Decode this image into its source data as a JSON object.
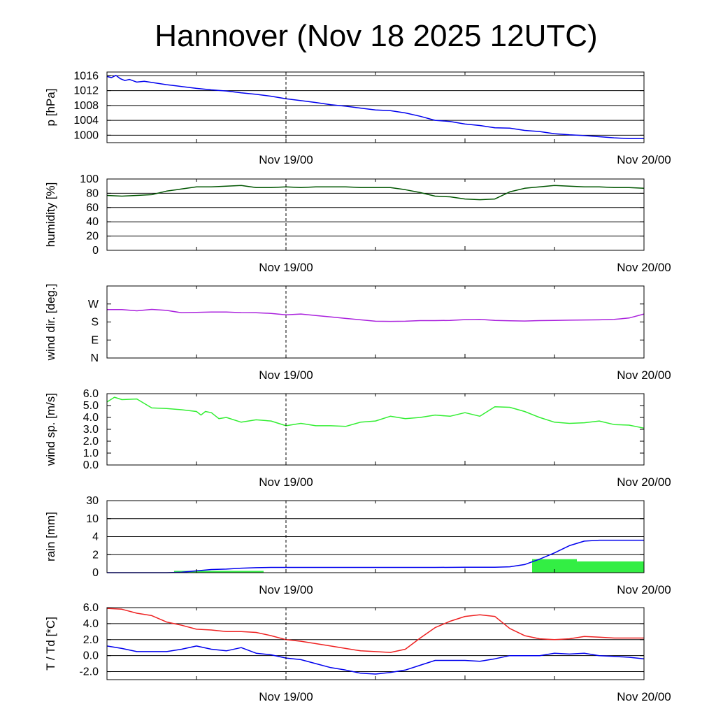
{
  "title": "Hannover (Nov 18 2025 12UTC)",
  "chart_data": [
    {
      "type": "line",
      "ylabel": "p [hPa]",
      "ylim": [
        998,
        1017
      ],
      "x_range_hours": [
        0,
        36
      ],
      "date_ticks": [
        {
          "hour": 12,
          "label": "Nov 19/00"
        },
        {
          "hour": 36,
          "label": "Nov 20/00"
        }
      ],
      "grid": true,
      "yticks": [
        {
          "value": 1000,
          "label": "1000"
        },
        {
          "value": 1004,
          "label": "1004"
        },
        {
          "value": 1008,
          "label": "1008"
        },
        {
          "value": 1012,
          "label": "1012"
        },
        {
          "value": 1016,
          "label": "1016"
        }
      ],
      "series": [
        {
          "color": "#0000ee",
          "x": [
            0,
            0.3,
            0.6,
            0.9,
            1.2,
            1.5,
            2,
            2.5,
            3,
            4,
            5,
            6,
            7,
            8,
            9,
            10,
            11,
            12,
            13,
            14,
            15,
            16,
            17,
            18,
            19,
            20,
            21,
            22,
            23,
            24,
            25,
            26,
            27,
            28,
            29,
            30,
            31,
            32,
            33,
            34,
            35,
            36
          ],
          "y": [
            1015.8,
            1015.5,
            1016.1,
            1015.2,
            1014.7,
            1015.0,
            1014.3,
            1014.5,
            1014.2,
            1013.6,
            1013.1,
            1012.6,
            1012.2,
            1011.9,
            1011.4,
            1011.0,
            1010.5,
            1009.8,
            1009.3,
            1008.8,
            1008.2,
            1007.8,
            1007.3,
            1006.8,
            1006.6,
            1006.0,
            1005.1,
            1004.0,
            1003.7,
            1003.0,
            1002.6,
            1002.0,
            1001.9,
            1001.3,
            1001.0,
            1000.4,
            1000.1,
            999.9,
            999.6,
            999.3,
            999.1,
            999.1
          ]
        }
      ]
    },
    {
      "type": "line",
      "ylabel": "humidity [%]",
      "ylim": [
        0,
        100
      ],
      "x_range_hours": [
        0,
        36
      ],
      "date_ticks": [
        {
          "hour": 12,
          "label": "Nov 19/00"
        },
        {
          "hour": 36,
          "label": "Nov 20/00"
        }
      ],
      "grid": true,
      "yticks": [
        {
          "value": 0,
          "label": "0"
        },
        {
          "value": 20,
          "label": "20"
        },
        {
          "value": 40,
          "label": "40"
        },
        {
          "value": 60,
          "label": "60"
        },
        {
          "value": 80,
          "label": "80"
        },
        {
          "value": 100,
          "label": "100"
        }
      ],
      "series": [
        {
          "color": "#005500",
          "x": [
            0,
            1,
            2,
            3,
            4,
            5,
            6,
            7,
            8,
            9,
            10,
            11,
            12,
            13,
            14,
            15,
            16,
            17,
            18,
            19,
            20,
            21,
            22,
            23,
            24,
            25,
            26,
            27,
            28,
            29,
            30,
            31,
            32,
            33,
            34,
            35,
            36
          ],
          "y": [
            77,
            76,
            77,
            78,
            83,
            86,
            89,
            89,
            90,
            91,
            88,
            88,
            89,
            88,
            89,
            89,
            89,
            88,
            88,
            88,
            85,
            81,
            76,
            75,
            72,
            71,
            72,
            82,
            87,
            89,
            91,
            90,
            89,
            89,
            88,
            88,
            87
          ]
        }
      ]
    },
    {
      "type": "line",
      "ylabel": "wind dir. [deg.]",
      "ylim": [
        0,
        360
      ],
      "x_range_hours": [
        0,
        36
      ],
      "date_ticks": [
        {
          "hour": 12,
          "label": "Nov 19/00"
        },
        {
          "hour": 36,
          "label": "Nov 20/00"
        }
      ],
      "grid": false,
      "yticks": [
        {
          "value": 0,
          "label": "N"
        },
        {
          "value": 90,
          "label": "E"
        },
        {
          "value": 180,
          "label": "S"
        },
        {
          "value": 270,
          "label": "W"
        }
      ],
      "series": [
        {
          "color": "#aa22dd",
          "x": [
            0,
            1,
            2,
            3,
            4,
            5,
            6,
            7,
            8,
            9,
            10,
            11,
            12,
            13,
            14,
            15,
            16,
            17,
            18,
            19,
            20,
            21,
            22,
            23,
            24,
            25,
            26,
            27,
            28,
            29,
            30,
            31,
            32,
            33,
            34,
            35,
            36
          ],
          "y": [
            242,
            242,
            236,
            243,
            238,
            226,
            228,
            230,
            230,
            227,
            226,
            223,
            216,
            220,
            212,
            205,
            198,
            191,
            184,
            183,
            184,
            187,
            187,
            188,
            192,
            193,
            188,
            186,
            185,
            187,
            188,
            189,
            190,
            191,
            193,
            200,
            220
          ]
        }
      ]
    },
    {
      "type": "line",
      "ylabel": "wind sp. [m/s]",
      "ylim": [
        0,
        6
      ],
      "x_range_hours": [
        0,
        36
      ],
      "date_ticks": [
        {
          "hour": 12,
          "label": "Nov 19/00"
        },
        {
          "hour": 36,
          "label": "Nov 20/00"
        }
      ],
      "grid": false,
      "yticks": [
        {
          "value": 0,
          "label": "0.0"
        },
        {
          "value": 1,
          "label": "1.0"
        },
        {
          "value": 2,
          "label": "2.0"
        },
        {
          "value": 3,
          "label": "3.0"
        },
        {
          "value": 4,
          "label": "4.0"
        },
        {
          "value": 5,
          "label": "5.0"
        },
        {
          "value": 6,
          "label": "6.0"
        }
      ],
      "series": [
        {
          "color": "#33ee33",
          "x": [
            0,
            0.5,
            1,
            2,
            3,
            4,
            5,
            6,
            6.3,
            6.6,
            7,
            7.5,
            8,
            9,
            10,
            11,
            12,
            13,
            14,
            15,
            16,
            17,
            18,
            19,
            20,
            21,
            22,
            23,
            24,
            25,
            26,
            27,
            28,
            29,
            30,
            31,
            32,
            33,
            34,
            35,
            36
          ],
          "y": [
            5.3,
            5.7,
            5.5,
            5.55,
            4.8,
            4.75,
            4.65,
            4.5,
            4.2,
            4.5,
            4.4,
            3.9,
            4.0,
            3.6,
            3.8,
            3.7,
            3.3,
            3.5,
            3.3,
            3.3,
            3.25,
            3.6,
            3.7,
            4.1,
            3.9,
            4.0,
            4.2,
            4.1,
            4.4,
            4.1,
            4.9,
            4.85,
            4.5,
            4.0,
            3.6,
            3.5,
            3.55,
            3.7,
            3.4,
            3.35,
            3.1
          ]
        }
      ]
    },
    {
      "type": "line+bar",
      "ylabel": "rain [mm]",
      "ylim": [
        0,
        30
      ],
      "x_range_hours": [
        0,
        36
      ],
      "date_ticks": [
        {
          "hour": 12,
          "label": "Nov 19/00"
        },
        {
          "hour": 36,
          "label": "Nov 20/00"
        }
      ],
      "grid": true,
      "scale": "piecewise",
      "scale_breaks": [
        0,
        2,
        4,
        10,
        30
      ],
      "yticks": [
        {
          "value": 0,
          "label": "0"
        },
        {
          "value": 2,
          "label": "2"
        },
        {
          "value": 4,
          "label": "4"
        },
        {
          "value": 10,
          "label": "10"
        },
        {
          "value": 30,
          "label": "30"
        }
      ],
      "bars": {
        "color": "#33ee44",
        "items": [
          {
            "x0": 4.5,
            "x1": 10.5,
            "value": 0.2
          },
          {
            "x0": 28.5,
            "x1": 31.5,
            "value": 1.5
          },
          {
            "x0": 31.5,
            "x1": 36,
            "value": 1.25
          }
        ]
      },
      "series": [
        {
          "color": "#0000ee",
          "x": [
            0,
            2,
            4,
            5,
            6,
            7,
            8,
            9,
            10,
            11,
            12,
            14,
            16,
            18,
            20,
            22,
            24,
            26,
            27,
            28,
            29,
            30,
            31,
            32,
            33,
            34,
            35,
            36
          ],
          "y": [
            0,
            0,
            0,
            0.05,
            0.2,
            0.35,
            0.4,
            0.5,
            0.55,
            0.58,
            0.58,
            0.58,
            0.58,
            0.58,
            0.58,
            0.58,
            0.6,
            0.6,
            0.65,
            0.9,
            1.5,
            2.2,
            3.0,
            3.5,
            3.6,
            3.6,
            3.6,
            3.6
          ]
        }
      ]
    },
    {
      "type": "line",
      "ylabel": "T / Td [*C]",
      "ylim": [
        -3,
        6
      ],
      "x_range_hours": [
        0,
        36
      ],
      "date_ticks": [
        {
          "hour": 12,
          "label": "Nov 19/00"
        },
        {
          "hour": 36,
          "label": "Nov 20/00"
        }
      ],
      "grid": true,
      "yticks": [
        {
          "value": -2,
          "label": "-2.0"
        },
        {
          "value": 0,
          "label": "0.0"
        },
        {
          "value": 2,
          "label": "2.0"
        },
        {
          "value": 4,
          "label": "4.0"
        },
        {
          "value": 6,
          "label": "6.0"
        }
      ],
      "series": [
        {
          "color": "#ee2222",
          "x": [
            0,
            1,
            2,
            3,
            4,
            5,
            6,
            7,
            8,
            9,
            10,
            11,
            12,
            13,
            14,
            15,
            16,
            17,
            18,
            19,
            20,
            21,
            22,
            23,
            24,
            25,
            26,
            27,
            28,
            29,
            30,
            31,
            32,
            33,
            34,
            35,
            36
          ],
          "y": [
            5.9,
            5.8,
            5.3,
            5.0,
            4.2,
            3.8,
            3.3,
            3.2,
            3.0,
            3.0,
            2.9,
            2.5,
            2.0,
            1.8,
            1.5,
            1.2,
            0.9,
            0.6,
            0.5,
            0.4,
            0.8,
            2.2,
            3.5,
            4.3,
            4.9,
            5.1,
            4.9,
            3.4,
            2.5,
            2.1,
            2.0,
            2.1,
            2.4,
            2.3,
            2.2,
            2.2,
            2.2
          ]
        },
        {
          "color": "#0000ee",
          "x": [
            0,
            1,
            2,
            3,
            4,
            5,
            6,
            7,
            8,
            9,
            10,
            11,
            12,
            13,
            14,
            15,
            16,
            17,
            18,
            19,
            20,
            21,
            22,
            23,
            24,
            25,
            26,
            27,
            28,
            29,
            30,
            31,
            32,
            33,
            34,
            35,
            36
          ],
          "y": [
            1.2,
            0.9,
            0.5,
            0.5,
            0.5,
            0.8,
            1.2,
            0.8,
            0.6,
            1.0,
            0.3,
            0.1,
            -0.3,
            -0.5,
            -1.0,
            -1.5,
            -1.8,
            -2.2,
            -2.3,
            -2.1,
            -1.8,
            -1.2,
            -0.6,
            -0.6,
            -0.6,
            -0.7,
            -0.4,
            0.0,
            0.0,
            0.0,
            0.3,
            0.2,
            0.3,
            0.0,
            -0.1,
            -0.2,
            -0.4
          ]
        }
      ]
    }
  ]
}
